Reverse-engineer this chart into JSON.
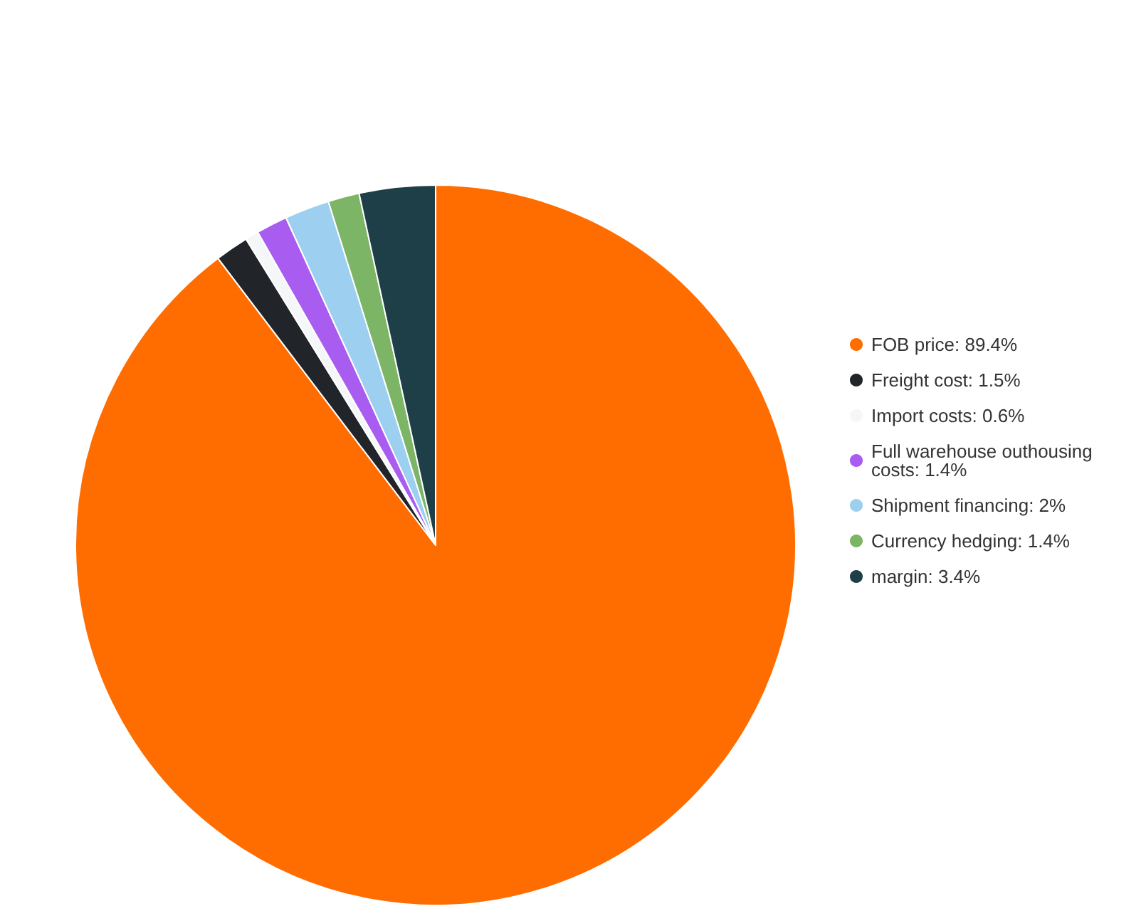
{
  "chart_data": {
    "type": "pie",
    "categories": [
      "FOB price",
      "Freight cost",
      "Import costs",
      "Full warehouse outhousing costs",
      "Shipment financing",
      "Currency hedging",
      "margin"
    ],
    "values": [
      89.4,
      1.5,
      0.6,
      1.4,
      2,
      1.4,
      3.4
    ],
    "value_labels": [
      "89.4%",
      "1.5%",
      "0.6%",
      "1.4%",
      "2%",
      "1.4%",
      "3.4%"
    ],
    "colors": [
      "#ff6d00",
      "#212529",
      "#f5f6f7",
      "#a95cf0",
      "#9ccff0",
      "#7cb565",
      "#1f3f48"
    ],
    "legend": "right"
  }
}
